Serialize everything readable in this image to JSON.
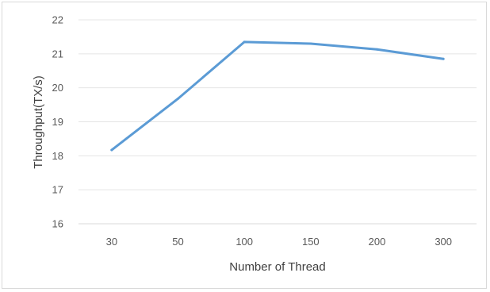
{
  "chart_data": {
    "type": "line",
    "title": "",
    "xlabel": "Number of  Thread",
    "ylabel": "Throughput(TX/s)",
    "categories": [
      "30",
      "50",
      "100",
      "150",
      "200",
      "300"
    ],
    "series": [
      {
        "values": [
          18.17,
          19.68,
          21.35,
          21.3,
          21.13,
          20.85
        ],
        "color": "#5B9BD5"
      }
    ],
    "ylim": [
      16,
      22
    ],
    "yticks": [
      "16",
      "17",
      "18",
      "19",
      "20",
      "21",
      "22"
    ],
    "grid": true,
    "legend": "none"
  }
}
